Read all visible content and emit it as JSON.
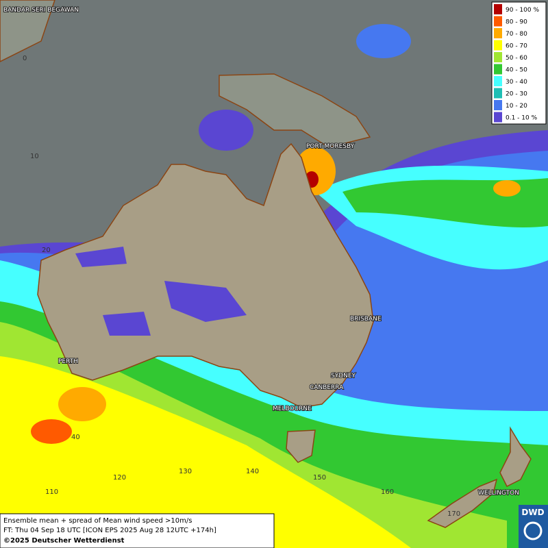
{
  "legend": {
    "items": [
      {
        "label": "90 - 100 %",
        "color": "#b40000"
      },
      {
        "label": "80 - 90",
        "color": "#ff5a00"
      },
      {
        "label": "70 - 80",
        "color": "#ffaa00"
      },
      {
        "label": "60 - 70",
        "color": "#ffff00"
      },
      {
        "label": "50 - 60",
        "color": "#a0e632"
      },
      {
        "label": "40 - 50",
        "color": "#32c832"
      },
      {
        "label": "30 - 40",
        "color": "#46ffff"
      },
      {
        "label": "20 - 30",
        "color": "#1ebeb4"
      },
      {
        "label": "10 - 20",
        "color": "#4678f0"
      },
      {
        "label": "0.1 - 10 %",
        "color": "#5a46d2"
      }
    ]
  },
  "cities": [
    "BANDAR SERI BEGAWAN",
    "PORT MORESBY",
    "BRISBANE",
    "PERTH",
    "SYDNEY",
    "CANBERRA",
    "MELBOURNE",
    "WELLINGTON"
  ],
  "grid_labels": [
    "0",
    "10",
    "20",
    "40",
    "110",
    "120",
    "130",
    "140",
    "150",
    "160",
    "170"
  ],
  "caption": {
    "line1": "Ensemble mean + spread of Mean wind speed >10m/s",
    "line2": "FT: Thu 04 Sep 18 UTC [ICON EPS 2025 Aug 28 12UTC +174h]",
    "line3": "©2025 Deutscher Wetterdienst"
  },
  "logo": "DWD"
}
